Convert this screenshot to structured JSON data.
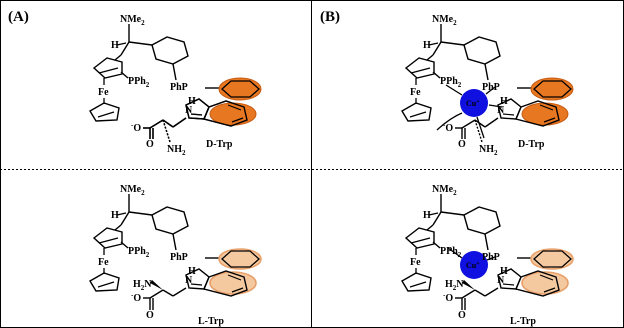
{
  "panels": {
    "a_label": "(A)",
    "b_label": "(B)"
  },
  "molecule": {
    "amine": "NMe",
    "amine_sub": "2",
    "h": "H",
    "fe": "Fe",
    "pph": "PPh",
    "pph_sub": "2",
    "php": "PhP",
    "n": "N",
    "nh": "H",
    "carboxylate": "O",
    "carboxylate_charge": "-",
    "carbonyl": "O",
    "nh2": "NH",
    "nh2_sub": "2",
    "h2n": "H",
    "h2n_sub": "2",
    "h2n_n": "N"
  },
  "copper": {
    "label": "Cu",
    "charge": "+"
  },
  "labels": {
    "d_trp": "D-Trp",
    "l_trp": "L-Trp"
  },
  "colors": {
    "highlight_strong": "#E87722",
    "highlight_light": "#F5C9A0",
    "highlight_light_edge": "#E8A06A",
    "copper": "#1010E0",
    "ink": "#000000"
  }
}
